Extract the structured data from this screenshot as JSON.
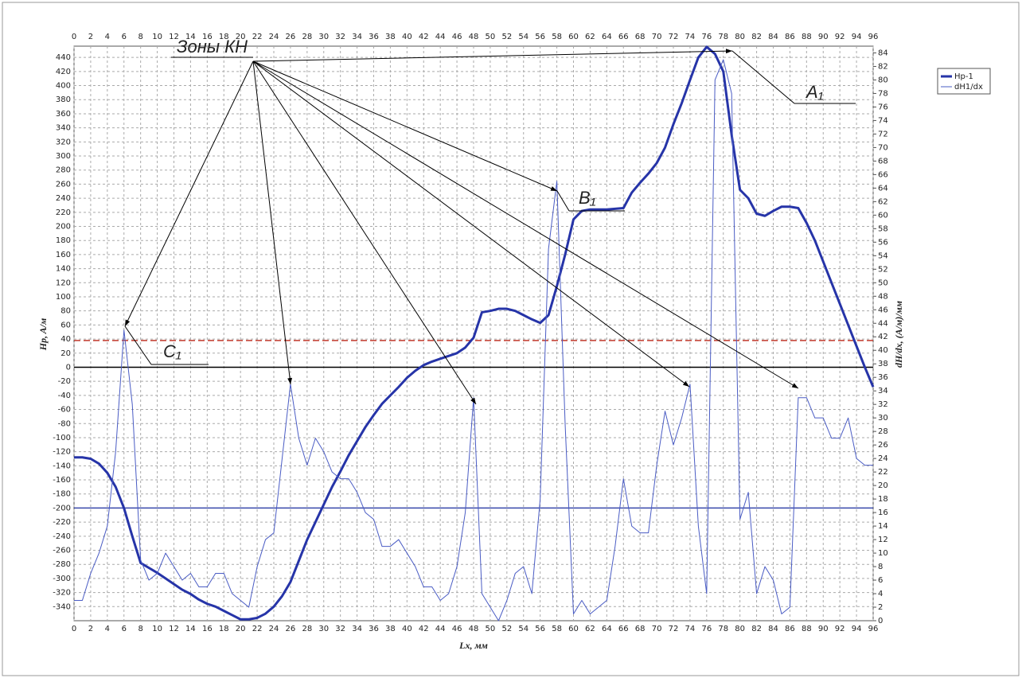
{
  "chart_data": {
    "type": "line",
    "x_label": "Lx, мм",
    "y_label": "Hp, A/м",
    "y2_label": "dH/dx, (A/м)/мм",
    "x": [
      0,
      1,
      2,
      3,
      4,
      5,
      6,
      7,
      8,
      9,
      10,
      11,
      12,
      13,
      14,
      15,
      16,
      17,
      18,
      19,
      20,
      21,
      22,
      23,
      24,
      25,
      26,
      27,
      28,
      29,
      30,
      31,
      32,
      33,
      34,
      35,
      36,
      37,
      38,
      39,
      40,
      41,
      42,
      43,
      44,
      45,
      46,
      47,
      48,
      49,
      50,
      51,
      52,
      53,
      54,
      55,
      56,
      57,
      58,
      59,
      60,
      61,
      62,
      63,
      64,
      65,
      66,
      67,
      68,
      69,
      70,
      71,
      72,
      73,
      74,
      75,
      76,
      77,
      78,
      79,
      80,
      81,
      82,
      83,
      84,
      85,
      86,
      87,
      88,
      89,
      90,
      91,
      92,
      93,
      94,
      95,
      96
    ],
    "series": [
      {
        "name": "Hp-1",
        "color": "#2634a8",
        "width": 3,
        "axis": "y",
        "values": [
          -128,
          -128,
          -130,
          -137,
          -150,
          -170,
          -200,
          -240,
          -278,
          -285,
          -292,
          -300,
          -308,
          -316,
          -322,
          -330,
          -336,
          -340,
          -346,
          -352,
          -358,
          -358,
          -356,
          -350,
          -340,
          -325,
          -305,
          -275,
          -245,
          -220,
          -195,
          -170,
          -148,
          -125,
          -105,
          -85,
          -68,
          -52,
          -40,
          -28,
          -15,
          -5,
          3,
          8,
          12,
          16,
          20,
          28,
          42,
          78,
          80,
          83,
          83,
          80,
          74,
          68,
          63,
          74,
          115,
          160,
          210,
          222,
          224,
          224,
          224,
          225,
          226,
          248,
          262,
          275,
          290,
          312,
          345,
          375,
          408,
          440,
          455,
          445,
          420,
          330,
          252,
          240,
          218,
          215,
          222,
          228,
          228,
          226,
          205,
          180,
          150,
          120,
          90,
          60,
          30,
          0,
          -28
        ]
      },
      {
        "name": "dH1/dx",
        "color": "#4a5cc4",
        "width": 1,
        "axis": "y2",
        "values": [
          3,
          3,
          7,
          10,
          14,
          25,
          43,
          32,
          9,
          6,
          7,
          10,
          8,
          6,
          7,
          5,
          5,
          7,
          7,
          4,
          3,
          2,
          8,
          12,
          13,
          24,
          35,
          27,
          23,
          27,
          25,
          22,
          21,
          21,
          19,
          16,
          15,
          11,
          11,
          12,
          10,
          8,
          5,
          5,
          3,
          4,
          8,
          16,
          33,
          4,
          2,
          0,
          3,
          7,
          8,
          4,
          18,
          55,
          65,
          29,
          1,
          3,
          1,
          2,
          3,
          11,
          21,
          14,
          13,
          13,
          23,
          31,
          26,
          30,
          35,
          14,
          4,
          80,
          83,
          78,
          15,
          19,
          4,
          8,
          6,
          1,
          2,
          33,
          33,
          30,
          30,
          27,
          27,
          30,
          24,
          23,
          23
        ]
      }
    ],
    "xlim": [
      0,
      96
    ],
    "xticks": [
      0,
      2,
      4,
      6,
      8,
      10,
      12,
      14,
      16,
      18,
      20,
      22,
      24,
      26,
      28,
      30,
      32,
      34,
      36,
      38,
      40,
      42,
      44,
      46,
      48,
      50,
      52,
      54,
      56,
      58,
      60,
      62,
      64,
      66,
      68,
      70,
      72,
      74,
      76,
      78,
      80,
      82,
      84,
      86,
      88,
      90,
      92,
      94,
      96
    ],
    "ylim": [
      -360,
      456
    ],
    "yticks": [
      -340,
      -320,
      -300,
      -280,
      -260,
      -240,
      -220,
      -200,
      -180,
      -160,
      -140,
      -120,
      -100,
      -80,
      -60,
      -40,
      -20,
      0,
      20,
      40,
      60,
      80,
      100,
      120,
      140,
      160,
      180,
      200,
      220,
      240,
      260,
      280,
      300,
      320,
      340,
      360,
      380,
      400,
      420,
      440
    ],
    "y2lim": [
      0,
      85
    ],
    "y2ticks": [
      0,
      2,
      4,
      6,
      8,
      10,
      12,
      14,
      16,
      18,
      20,
      22,
      24,
      26,
      28,
      30,
      32,
      34,
      36,
      38,
      40,
      42,
      44,
      46,
      48,
      50,
      52,
      54,
      56,
      58,
      60,
      62,
      64,
      66,
      68,
      70,
      72,
      74,
      76,
      78,
      80,
      82,
      84
    ],
    "grid": true,
    "hlines": [
      {
        "value": 38,
        "color": "#c0392b",
        "dashed": true
      },
      {
        "value": 0,
        "color": "#000000",
        "dashed": false
      },
      {
        "value": -200,
        "color": "#3949ab",
        "dashed": false
      }
    ],
    "annotations": [
      "Зоны КН",
      "A₁",
      "B₁",
      "C₁"
    ]
  }
}
